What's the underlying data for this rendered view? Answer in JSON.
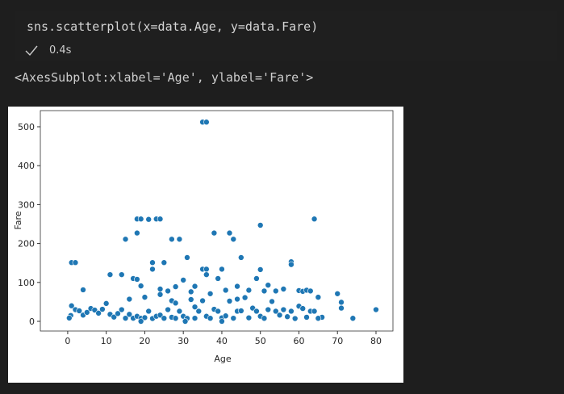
{
  "code": {
    "source": "sns.scatterplot(x=data.Age, y=data.Fare)",
    "status_time": "0.4s"
  },
  "output": {
    "text": "<AxesSubplot:xlabel='Age', ylabel='Fare'>"
  },
  "chart_data": {
    "type": "scatter",
    "x_label": "Age",
    "y_label": "Fare",
    "color": "#1f77b4",
    "xlim": [
      -7.1,
      84.4
    ],
    "ylim": [
      -24.9,
      541.5
    ],
    "xticks": [
      0,
      10,
      20,
      30,
      40,
      50,
      60,
      70,
      80
    ],
    "yticks": [
      0,
      100,
      200,
      300,
      400,
      500
    ],
    "x": [
      35,
      36,
      18,
      19,
      21,
      23,
      24,
      64,
      50,
      1,
      2,
      15,
      18,
      27,
      29,
      38,
      42,
      43,
      45,
      31,
      22,
      25,
      58,
      58,
      35,
      36,
      40,
      50,
      22,
      60,
      70,
      71,
      74,
      80,
      71,
      66,
      65,
      4,
      11,
      14,
      17,
      18,
      19,
      16,
      24,
      26,
      28,
      30,
      32,
      33,
      36,
      39,
      41,
      44,
      47,
      49,
      51,
      52,
      54,
      56,
      61,
      62,
      63,
      1,
      2,
      3,
      4,
      5,
      6,
      7,
      8,
      9,
      10,
      11,
      12,
      13,
      14,
      15,
      16,
      17,
      18,
      19,
      20,
      21,
      22,
      23,
      24,
      25,
      26,
      27,
      28,
      29,
      30,
      31,
      32,
      33,
      34,
      35,
      36,
      37,
      38,
      39,
      40,
      41,
      42,
      43,
      44,
      45,
      46,
      47,
      48,
      49,
      50,
      51,
      52,
      53,
      54,
      55,
      56,
      57,
      58,
      59,
      60,
      61,
      62,
      63,
      64,
      65,
      0.8,
      0.4,
      20,
      27,
      33,
      44,
      24,
      28,
      37,
      30.5,
      19,
      40
    ],
    "y": [
      512,
      512,
      263,
      263,
      262,
      263,
      263,
      263,
      247,
      151,
      151,
      211,
      227,
      211,
      211,
      227,
      227,
      211,
      164,
      164,
      151,
      151,
      153,
      146,
      134,
      134,
      134,
      133,
      134,
      79,
      71,
      49,
      7.8,
      30,
      34,
      10.5,
      62,
      81,
      120,
      120,
      110,
      108,
      91,
      57,
      83,
      78,
      89,
      106,
      76,
      90,
      120,
      110,
      80,
      90,
      80,
      110,
      78,
      93,
      78,
      83,
      77,
      80,
      78,
      40,
      30,
      27,
      16,
      23,
      33,
      29,
      21,
      31,
      46,
      18,
      11,
      20,
      30,
      8,
      18,
      8,
      13,
      7.9,
      9.5,
      26,
      7.2,
      13,
      16,
      7.9,
      30,
      10.5,
      7.8,
      26,
      13,
      7.7,
      56,
      8,
      26,
      53,
      13,
      7.9,
      31,
      26,
      9,
      14,
      52,
      8,
      26,
      27,
      61,
      9,
      34,
      26,
      13,
      7.8,
      30,
      51,
      26,
      16,
      30,
      12,
      26,
      7.2,
      39,
      33,
      10.5,
      26,
      26,
      7.8,
      15,
      8.5,
      62,
      53,
      37,
      57,
      69,
      47,
      71,
      0,
      0,
      0
    ]
  }
}
